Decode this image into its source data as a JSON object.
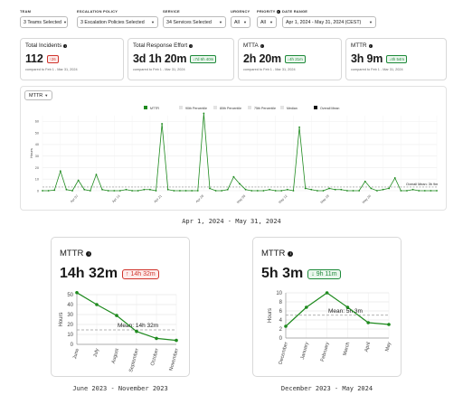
{
  "filters": {
    "team": {
      "label": "TEAM",
      "value": "3 Teams Selected"
    },
    "escalation": {
      "label": "ESCALATION POLICY",
      "value": "3 Escalation Policies Selected"
    },
    "service": {
      "label": "SERVICE",
      "value": "34 Services Selected"
    },
    "urgency": {
      "label": "URGENCY",
      "value": "All"
    },
    "priority": {
      "label": "PRIORITY",
      "value": "All"
    },
    "daterange": {
      "label": "DATE RANGE",
      "value": "Apr 1, 2024 - May 31, 2024 (CEST)"
    }
  },
  "cards": [
    {
      "title": "Total Incidents",
      "value": "112",
      "delta": "26",
      "direction": "up",
      "comparison": "compared to Feb 1 - Mar 31, 2024"
    },
    {
      "title": "Total Response Effort",
      "value": "3d 1h 20m",
      "delta": "7d 6h 40m",
      "direction": "down",
      "comparison": "compared to Feb 1 - Mar 31, 2024"
    },
    {
      "title": "MTTA",
      "value": "2h 20m",
      "delta": "4h 21m",
      "direction": "down",
      "comparison": "compared to Feb 1 - Mar 31, 2024"
    },
    {
      "title": "MTTR",
      "value": "3h 9m",
      "delta": "4h 54m",
      "direction": "down",
      "comparison": "compared to Feb 1 - Mar 31, 2024"
    }
  ],
  "main_metric_select": "MTTR",
  "main_caption": "Apr 1, 2024 - May 31, 2024",
  "left_caption": "June 2023 - November 2023",
  "right_caption": "December 2023 - May 2024",
  "left_card": {
    "title": "MTTR",
    "value": "14h 32m",
    "delta": "14h 32m",
    "direction": "up"
  },
  "right_card": {
    "title": "MTTR",
    "value": "5h 3m",
    "delta": "9h 11m",
    "direction": "down"
  },
  "colors": {
    "series": "#1e8a1e",
    "up": "#d0342c",
    "down": "#1e8a3a"
  },
  "chart_data": [
    {
      "type": "line",
      "legend": [
        "MTTR",
        "90th Percentile",
        "80th Percentile",
        "75th Percentile",
        "Median",
        "Overall Mean"
      ],
      "legend_placement": "top",
      "ylabel": "Hours",
      "ylim": [
        0,
        65
      ],
      "yticks": [
        0,
        10,
        20,
        30,
        40,
        50,
        60
      ],
      "xtick_labels": [
        {
          "label": "Apr 07",
          "index": 6
        },
        {
          "label": "Apr 14",
          "index": 13
        },
        {
          "label": "Apr 21",
          "index": 20
        },
        {
          "label": "Apr 28",
          "index": 27
        },
        {
          "label": "May 05",
          "index": 34
        },
        {
          "label": "May 12",
          "index": 41
        },
        {
          "label": "May 19",
          "index": 48
        },
        {
          "label": "May 26",
          "index": 55
        }
      ],
      "mean": 3.15,
      "mean_label": "Overall Mean: 3h 9m",
      "series": [
        {
          "name": "MTTR",
          "values": [
            0,
            0,
            0.5,
            17,
            1,
            0,
            9,
            1,
            0,
            14,
            1,
            0,
            0,
            0,
            1,
            0,
            0,
            1,
            1,
            0,
            58,
            1,
            0,
            0,
            0,
            0,
            0,
            67,
            2,
            0,
            0,
            1,
            12,
            6,
            1,
            0,
            0,
            0,
            1,
            0,
            0,
            1,
            0,
            55,
            2,
            1,
            0,
            0,
            2,
            1,
            1,
            0,
            0,
            0,
            8,
            2,
            0,
            1,
            2,
            11,
            0,
            0,
            1,
            0,
            0,
            0,
            0
          ]
        }
      ]
    },
    {
      "type": "line",
      "ylabel": "Hours",
      "ylim": [
        0,
        50
      ],
      "yticks": [
        0,
        10,
        20,
        30,
        40,
        50
      ],
      "categories": [
        "June",
        "July",
        "August",
        "September",
        "October",
        "November"
      ],
      "mean": 14.53,
      "mean_label": "Mean: 14h 32m",
      "series": [
        {
          "name": "MTTR",
          "values": [
            52,
            40,
            29,
            13,
            6,
            4
          ]
        }
      ]
    },
    {
      "type": "line",
      "ylabel": "Hours",
      "ylim": [
        0,
        10
      ],
      "yticks": [
        0,
        2,
        4,
        6,
        8,
        10
      ],
      "categories": [
        "December",
        "January",
        "February",
        "March",
        "April",
        "May"
      ],
      "mean": 5.05,
      "mean_label": "Mean: 5h 3m",
      "series": [
        {
          "name": "MTTR",
          "values": [
            2.6,
            6.8,
            10,
            6.8,
            3.4,
            3
          ]
        }
      ]
    }
  ]
}
